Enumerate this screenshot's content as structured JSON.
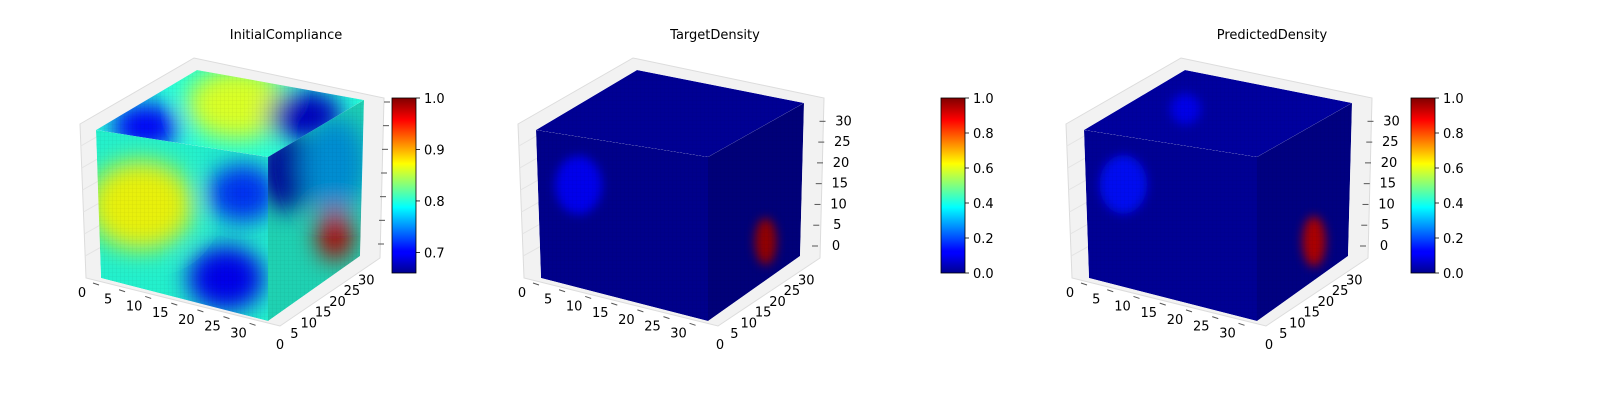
{
  "chart_data": [
    {
      "type": "heatmap",
      "view": "3d-voxel-cube",
      "title": "InitialCompliance",
      "colormap": "jet",
      "x_ticks": [
        0,
        5,
        10,
        15,
        20,
        25,
        30
      ],
      "y_ticks": [
        0,
        5,
        10,
        15,
        20,
        25,
        30
      ],
      "z_ticks": [],
      "colorbar": {
        "range": [
          0.66,
          1.0
        ],
        "ticks": [
          0.7,
          0.8,
          0.9,
          1.0
        ],
        "tick_labels": [
          "0.7",
          "0.8",
          "0.9",
          "1.0"
        ]
      },
      "base_value": 0.8,
      "features": [
        {
          "face": "front",
          "u": 0.25,
          "v": 0.45,
          "r": 0.3,
          "value": 0.87
        },
        {
          "face": "front",
          "u": 0.75,
          "v": 0.8,
          "r": 0.22,
          "value": 0.7
        },
        {
          "face": "front",
          "u": 0.85,
          "v": 0.25,
          "r": 0.2,
          "value": 0.72
        },
        {
          "face": "top",
          "u": 0.45,
          "v": 0.35,
          "r": 0.3,
          "value": 0.86
        },
        {
          "face": "top",
          "u": 0.85,
          "v": 0.35,
          "r": 0.22,
          "value": 0.68
        },
        {
          "face": "top",
          "u": 0.2,
          "v": 0.85,
          "r": 0.2,
          "value": 0.7
        },
        {
          "face": "side",
          "u": 0.2,
          "v": 0.15,
          "r": 0.25,
          "value": 0.68
        },
        {
          "face": "side",
          "u": 0.7,
          "v": 0.3,
          "r": 0.3,
          "value": 0.76
        },
        {
          "face": "side",
          "u": 0.72,
          "v": 0.75,
          "r": 0.16,
          "value": 0.97
        }
      ]
    },
    {
      "type": "heatmap",
      "view": "3d-voxel-cube",
      "title": "TargetDensity",
      "colormap": "jet",
      "x_ticks": [
        0,
        5,
        10,
        15,
        20,
        25,
        30
      ],
      "y_ticks": [
        0,
        5,
        10,
        15,
        20,
        25,
        30
      ],
      "z_ticks": [
        0,
        5,
        10,
        15,
        20,
        25,
        30
      ],
      "colorbar": {
        "range": [
          0.0,
          1.0
        ],
        "ticks": [
          0.0,
          0.2,
          0.4,
          0.6,
          0.8,
          1.0
        ],
        "tick_labels": [
          "0.0",
          "0.2",
          "0.4",
          "0.6",
          "0.8",
          "1.0"
        ]
      },
      "base_value": 0.02,
      "features": [
        {
          "face": "side",
          "u": 0.62,
          "v": 0.75,
          "r": 0.13,
          "value": 0.95
        },
        {
          "face": "front",
          "u": 0.24,
          "v": 0.32,
          "r": 0.18,
          "value": 0.12
        }
      ]
    },
    {
      "type": "heatmap",
      "view": "3d-voxel-cube",
      "title": "PredictedDensity",
      "colormap": "jet",
      "x_ticks": [
        0,
        5,
        10,
        15,
        20,
        25,
        30
      ],
      "y_ticks": [
        0,
        5,
        10,
        15,
        20,
        25,
        30
      ],
      "z_ticks": [
        0,
        5,
        10,
        15,
        20,
        25,
        30
      ],
      "colorbar": {
        "range": [
          0.0,
          1.0
        ],
        "ticks": [
          0.0,
          0.2,
          0.4,
          0.6,
          0.8,
          1.0
        ],
        "tick_labels": [
          "0.0",
          "0.2",
          "0.4",
          "0.6",
          "0.8",
          "1.0"
        ]
      },
      "base_value": 0.03,
      "features": [
        {
          "face": "side",
          "u": 0.62,
          "v": 0.75,
          "r": 0.14,
          "value": 0.92
        },
        {
          "face": "front",
          "u": 0.22,
          "v": 0.32,
          "r": 0.18,
          "value": 0.14
        },
        {
          "face": "top",
          "u": 0.3,
          "v": 0.5,
          "r": 0.12,
          "value": 0.1
        }
      ]
    }
  ]
}
